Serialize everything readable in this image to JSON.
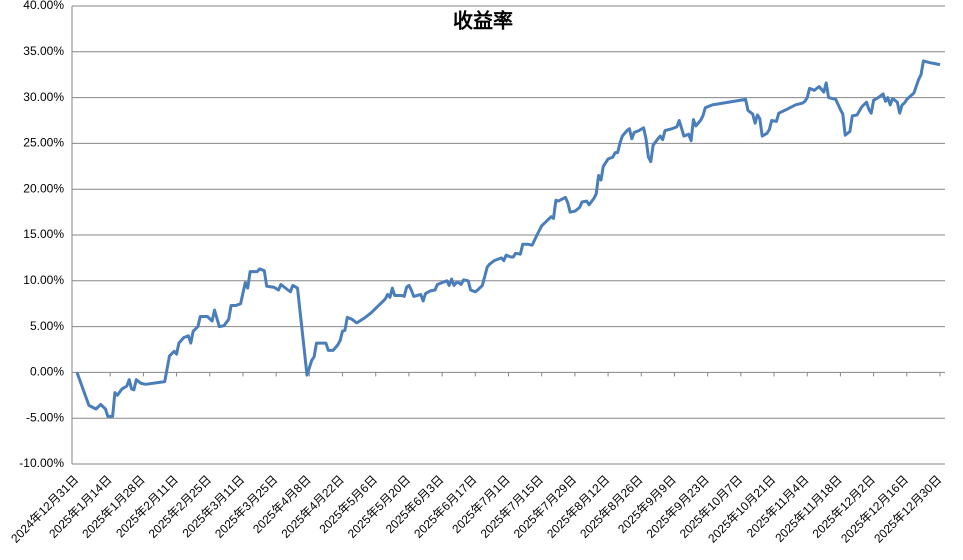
{
  "chart_data": {
    "type": "line",
    "title": "收益率",
    "color": "#4a7ebb",
    "grid": true,
    "x": [
      "2024-12-31",
      "2025-01-05",
      "2025-01-08",
      "2025-01-10",
      "2025-01-12",
      "2025-01-13",
      "2025-01-15",
      "2025-01-16",
      "2025-01-17",
      "2025-01-19",
      "2025-01-21",
      "2025-01-22",
      "2025-01-23",
      "2025-01-24",
      "2025-01-25",
      "2025-01-27",
      "2025-01-29",
      "2025-02-06",
      "2025-02-08",
      "2025-02-10",
      "2025-02-11",
      "2025-02-12",
      "2025-02-14",
      "2025-02-16",
      "2025-02-17",
      "2025-02-18",
      "2025-02-20",
      "2025-02-21",
      "2025-02-24",
      "2025-02-26",
      "2025-02-27",
      "2025-03-01",
      "2025-03-03",
      "2025-03-05",
      "2025-03-06",
      "2025-03-08",
      "2025-03-10",
      "2025-03-12",
      "2025-03-13",
      "2025-03-14",
      "2025-03-17",
      "2025-03-18",
      "2025-03-20",
      "2025-03-21",
      "2025-03-24",
      "2025-03-26",
      "2025-03-27",
      "2025-03-30",
      "2025-03-31",
      "2025-04-01",
      "2025-04-03",
      "2025-04-07",
      "2025-04-09",
      "2025-04-10",
      "2025-04-11",
      "2025-04-15",
      "2025-04-16",
      "2025-04-18",
      "2025-04-20",
      "2025-04-21",
      "2025-04-22",
      "2025-04-23",
      "2025-04-24",
      "2025-04-26",
      "2025-04-28",
      "2025-05-01",
      "2025-05-04",
      "2025-05-06",
      "2025-05-08",
      "2025-05-10",
      "2025-05-11",
      "2025-05-12",
      "2025-05-13",
      "2025-05-14",
      "2025-05-17",
      "2025-05-18",
      "2025-05-19",
      "2025-05-20",
      "2025-05-21",
      "2025-05-22",
      "2025-05-25",
      "2025-05-26",
      "2025-05-27",
      "2025-05-29",
      "2025-05-31",
      "2025-06-01",
      "2025-06-03",
      "2025-06-05",
      "2025-06-06",
      "2025-06-07",
      "2025-06-08",
      "2025-06-09",
      "2025-06-10",
      "2025-06-11",
      "2025-06-12",
      "2025-06-14",
      "2025-06-15",
      "2025-06-17",
      "2025-06-18",
      "2025-06-20",
      "2025-06-22",
      "2025-06-23",
      "2025-06-25",
      "2025-06-28",
      "2025-06-29",
      "2025-06-30",
      "2025-07-02",
      "2025-07-03",
      "2025-07-04",
      "2025-07-06",
      "2025-07-07",
      "2025-07-09",
      "2025-07-11",
      "2025-07-13",
      "2025-07-15",
      "2025-07-17",
      "2025-07-19",
      "2025-07-20",
      "2025-07-21",
      "2025-07-22",
      "2025-07-25",
      "2025-07-26",
      "2025-07-27",
      "2025-07-29",
      "2025-07-31",
      "2025-08-01",
      "2025-08-03",
      "2025-08-04",
      "2025-08-06",
      "2025-08-07",
      "2025-08-08",
      "2025-08-09",
      "2025-08-10",
      "2025-08-12",
      "2025-08-14",
      "2025-08-15",
      "2025-08-16",
      "2025-08-17",
      "2025-08-18",
      "2025-08-20",
      "2025-08-21",
      "2025-08-22",
      "2025-08-23",
      "2025-08-25",
      "2025-08-27",
      "2025-08-28",
      "2025-08-29",
      "2025-08-30",
      "2025-08-31",
      "2025-09-02",
      "2025-09-03",
      "2025-09-04",
      "2025-09-05",
      "2025-09-08",
      "2025-09-10",
      "2025-09-11",
      "2025-09-13",
      "2025-09-15",
      "2025-09-16",
      "2025-09-17",
      "2025-09-18",
      "2025-09-20",
      "2025-09-21",
      "2025-09-22",
      "2025-09-25",
      "2025-10-09",
      "2025-10-10",
      "2025-10-12",
      "2025-10-13",
      "2025-10-14",
      "2025-10-15",
      "2025-10-16",
      "2025-10-18",
      "2025-10-19",
      "2025-10-20",
      "2025-10-22",
      "2025-10-23",
      "2025-10-27",
      "2025-10-30",
      "2025-11-02",
      "2025-11-03",
      "2025-11-04",
      "2025-11-05",
      "2025-11-07",
      "2025-11-09",
      "2025-11-10",
      "2025-11-11",
      "2025-11-12",
      "2025-11-13",
      "2025-11-16",
      "2025-11-18",
      "2025-11-19",
      "2025-11-20",
      "2025-11-22",
      "2025-11-23",
      "2025-11-25",
      "2025-11-27",
      "2025-11-29",
      "2025-11-30",
      "2025-12-01",
      "2025-12-02",
      "2025-12-04",
      "2025-12-06",
      "2025-12-07",
      "2025-12-08",
      "2025-12-09",
      "2025-12-10",
      "2025-12-12",
      "2025-12-13",
      "2025-12-14",
      "2025-12-15",
      "2025-12-16",
      "2025-12-19",
      "2025-12-21",
      "2025-12-22",
      "2025-12-23",
      "2025-12-26",
      "2025-12-30"
    ],
    "values": [
      0,
      -3.6,
      -4.0,
      -3.5,
      -4.0,
      -4.8,
      -4.8,
      -2.2,
      -2.5,
      -1.8,
      -1.5,
      -0.8,
      -1.8,
      -1.9,
      -0.8,
      -1.2,
      -1.3,
      -1.0,
      1.8,
      2.3,
      2.0,
      3.2,
      3.8,
      4.0,
      3.2,
      4.5,
      5.0,
      6.1,
      6.1,
      5.6,
      6.8,
      5.0,
      5.1,
      5.8,
      7.3,
      7.3,
      7.5,
      9.8,
      9.2,
      11.0,
      11.0,
      11.3,
      11.1,
      9.4,
      9.3,
      9.0,
      9.6,
      9.0,
      8.8,
      9.5,
      9.2,
      -0.3,
      1.3,
      1.7,
      3.2,
      3.2,
      2.4,
      2.4,
      3.0,
      3.5,
      4.5,
      4.6,
      6.0,
      5.8,
      5.4,
      5.9,
      6.5,
      7.0,
      7.5,
      8.0,
      8.5,
      8.2,
      9.2,
      8.4,
      8.4,
      8.3,
      9.3,
      9.5,
      9.0,
      8.3,
      8.5,
      7.8,
      8.6,
      8.9,
      9.0,
      9.6,
      9.8,
      10.0,
      9.5,
      10.2,
      9.5,
      9.8,
      9.8,
      9.6,
      10.1,
      10.0,
      9.0,
      8.8,
      9.0,
      9.5,
      11.5,
      11.8,
      12.2,
      12.5,
      12.2,
      12.8,
      12.6,
      12.6,
      13.0,
      12.9,
      14.0,
      14.0,
      13.9,
      15.0,
      16.0,
      16.5,
      17.0,
      16.8,
      18.8,
      18.7,
      19.1,
      18.5,
      17.5,
      17.6,
      18.0,
      18.6,
      18.7,
      18.3,
      19.0,
      19.5,
      21.5,
      21.0,
      22.5,
      23.3,
      23.5,
      24.0,
      24.0,
      25.0,
      25.8,
      26.4,
      26.6,
      25.5,
      26.2,
      26.4,
      26.7,
      25.5,
      23.5,
      23.0,
      24.8,
      25.5,
      25.8,
      25.4,
      26.4,
      26.6,
      26.8,
      27.5,
      25.8,
      26.0,
      25.3,
      27.6,
      26.9,
      27.5,
      28.0,
      28.9,
      29.2,
      29.8,
      28.6,
      28.2,
      27.2,
      28.1,
      27.7,
      25.8,
      26.1,
      26.5,
      27.5,
      27.4,
      28.3,
      28.8,
      29.2,
      29.4,
      29.6,
      30.0,
      31.0,
      30.8,
      31.2,
      30.9,
      30.6,
      31.6,
      30.0,
      29.8,
      28.7,
      28.2,
      25.9,
      26.3,
      28.0,
      28.1,
      29.0,
      29.5,
      28.7,
      28.3,
      29.7,
      30.0,
      30.4,
      29.6,
      30.0,
      29.2,
      29.9,
      29.5,
      28.3,
      29.2,
      29.4,
      29.8,
      30.5,
      32.0,
      32.5,
      34.0,
      33.8,
      33.6
    ],
    "xlim": [
      "2024-12-31",
      "2025-12-30"
    ],
    "xticks": [
      {
        "value": "2024-12-31",
        "label": "2024年12月31日"
      },
      {
        "value": "2025-01-14",
        "label": "2025年1月14日"
      },
      {
        "value": "2025-01-28",
        "label": "2025年1月28日"
      },
      {
        "value": "2025-02-11",
        "label": "2025年2月11日"
      },
      {
        "value": "2025-02-25",
        "label": "2025年2月25日"
      },
      {
        "value": "2025-03-11",
        "label": "2025年3月11日"
      },
      {
        "value": "2025-03-25",
        "label": "2025年3月25日"
      },
      {
        "value": "2025-04-08",
        "label": "2025年4月8日"
      },
      {
        "value": "2025-04-22",
        "label": "2025年4月22日"
      },
      {
        "value": "2025-05-06",
        "label": "2025年5月6日"
      },
      {
        "value": "2025-05-20",
        "label": "2025年5月20日"
      },
      {
        "value": "2025-06-03",
        "label": "2025年6月3日"
      },
      {
        "value": "2025-06-17",
        "label": "2025年6月17日"
      },
      {
        "value": "2025-07-01",
        "label": "2025年7月1日"
      },
      {
        "value": "2025-07-15",
        "label": "2025年7月15日"
      },
      {
        "value": "2025-07-29",
        "label": "2025年7月29日"
      },
      {
        "value": "2025-08-12",
        "label": "2025年8月12日"
      },
      {
        "value": "2025-08-26",
        "label": "2025年8月26日"
      },
      {
        "value": "2025-09-09",
        "label": "2025年9月9日"
      },
      {
        "value": "2025-09-23",
        "label": "2025年9月23日"
      },
      {
        "value": "2025-10-07",
        "label": "2025年10月7日"
      },
      {
        "value": "2025-10-21",
        "label": "2025年10月21日"
      },
      {
        "value": "2025-11-04",
        "label": "2025年11月4日"
      },
      {
        "value": "2025-11-18",
        "label": "2025年11月18日"
      },
      {
        "value": "2025-12-02",
        "label": "2025年12月2日"
      },
      {
        "value": "2025-12-16",
        "label": "2025年12月16日"
      },
      {
        "value": "2025-12-30",
        "label": "2025年12月30日"
      }
    ],
    "ylim": [
      -10,
      40
    ],
    "yticks": [
      {
        "value": -10,
        "label": "-10.00%"
      },
      {
        "value": -5,
        "label": "-5.00%"
      },
      {
        "value": 0,
        "label": "0.00%"
      },
      {
        "value": 5,
        "label": "5.00%"
      },
      {
        "value": 10,
        "label": "10.00%"
      },
      {
        "value": 15,
        "label": "15.00%"
      },
      {
        "value": 20,
        "label": "20.00%"
      },
      {
        "value": 25,
        "label": "25.00%"
      },
      {
        "value": 30,
        "label": "30.00%"
      },
      {
        "value": 35,
        "label": "35.00%"
      },
      {
        "value": 40,
        "label": "40.00%"
      }
    ]
  }
}
